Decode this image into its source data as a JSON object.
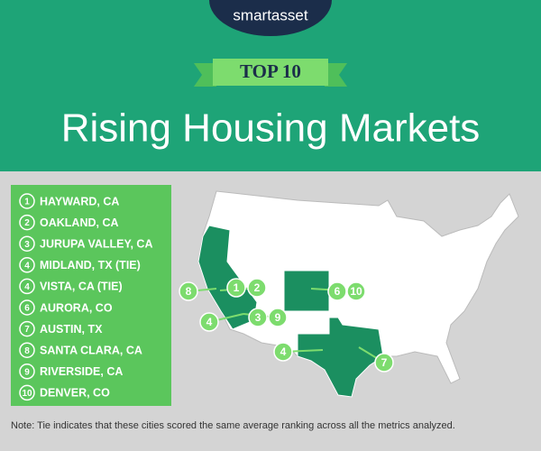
{
  "brand": "smartasset",
  "badge": "TOP 10",
  "title": "Rising Housing Markets",
  "list": [
    {
      "rank": 1,
      "city": "HAYWARD, CA"
    },
    {
      "rank": 2,
      "city": "OAKLAND, CA"
    },
    {
      "rank": 3,
      "city": "JURUPA VALLEY, CA"
    },
    {
      "rank": 4,
      "city": "MIDLAND, TX (TIE)"
    },
    {
      "rank": 4,
      "city": "VISTA, CA (TIE)"
    },
    {
      "rank": 6,
      "city": "AURORA, CO"
    },
    {
      "rank": 7,
      "city": "AUSTIN, TX"
    },
    {
      "rank": 8,
      "city": "SANTA CLARA, CA"
    },
    {
      "rank": 9,
      "city": "RIVERSIDE, CA"
    },
    {
      "rank": 10,
      "city": "DENVER, CO"
    }
  ],
  "map_markers": [
    1,
    2,
    8,
    4,
    3,
    9,
    6,
    10,
    4,
    7
  ],
  "note": "Note: Tie indicates that these cities scored the same average ranking across all the metrics analyzed."
}
